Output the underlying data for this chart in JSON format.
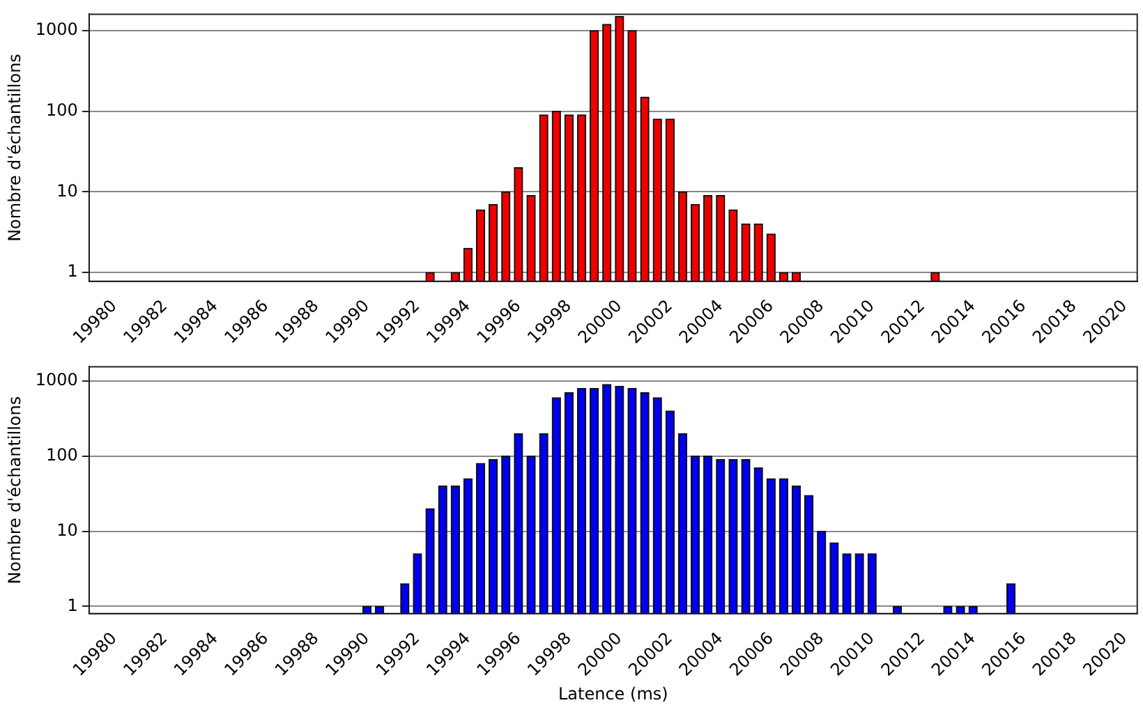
{
  "chart_data": [
    {
      "type": "bar",
      "ylabel": "Nombre d'échantillons",
      "color": "#ee0000",
      "log": "y",
      "grid": "y",
      "x": [
        19992.5,
        19993.5,
        19994,
        19994.5,
        19995,
        19995.5,
        19996,
        19996.5,
        19997,
        19997.5,
        19998,
        19998.5,
        19999,
        19999.5,
        20000,
        20000.5,
        20001,
        20001.5,
        20002,
        20002.5,
        20003,
        20003.5,
        20004,
        20004.5,
        20005,
        20005.5,
        20006,
        20006.5,
        20007,
        20012.5
      ],
      "values": [
        1,
        1,
        2,
        6,
        7,
        10,
        20,
        9,
        90,
        100,
        90,
        90,
        1000,
        1200,
        1500,
        1000,
        150,
        80,
        80,
        10,
        7,
        9,
        9,
        6,
        4,
        4,
        3,
        1,
        1,
        1
      ],
      "xlim": [
        19979,
        20020.5
      ],
      "ylim": [
        0.78,
        1600
      ],
      "xticks": [
        19980,
        19982,
        19984,
        19986,
        19988,
        19990,
        19992,
        19994,
        19996,
        19998,
        20000,
        20002,
        20004,
        20006,
        20008,
        20010,
        20012,
        20014,
        20016,
        20018,
        20020
      ],
      "yticks": [
        1,
        10,
        100,
        1000
      ]
    },
    {
      "type": "bar",
      "ylabel": "Nombre d'échantillons",
      "xlabel": "Latence (ms)",
      "color": "#0000ee",
      "log": "y",
      "grid": "y",
      "x": [
        19990,
        19990.5,
        19991.5,
        19992,
        19992.5,
        19993,
        19993.5,
        19994,
        19994.5,
        19995,
        19995.5,
        19996,
        19996.5,
        19997,
        19997.5,
        19998,
        19998.5,
        19999,
        19999.5,
        20000,
        20000.5,
        20001,
        20001.5,
        20002,
        20002.5,
        20003,
        20003.5,
        20004,
        20004.5,
        20005,
        20005.5,
        20006,
        20006.5,
        20007,
        20007.5,
        20008,
        20008.5,
        20009,
        20009.5,
        20010,
        20011,
        20013,
        20013.5,
        20014,
        20015.5
      ],
      "values": [
        1,
        1,
        2,
        5,
        20,
        40,
        40,
        50,
        80,
        90,
        100,
        200,
        100,
        200,
        600,
        700,
        800,
        800,
        900,
        850,
        800,
        700,
        600,
        400,
        200,
        100,
        100,
        90,
        90,
        90,
        70,
        50,
        50,
        40,
        30,
        10,
        7,
        5,
        5,
        5,
        1,
        1,
        1,
        1,
        2
      ],
      "xlim": [
        19979,
        20020.5
      ],
      "ylim": [
        0.8,
        1550
      ],
      "xticks": [
        19980,
        19982,
        19984,
        19986,
        19988,
        19990,
        19992,
        19994,
        19996,
        19998,
        20000,
        20002,
        20004,
        20006,
        20008,
        20010,
        20012,
        20014,
        20016,
        20018,
        20020
      ],
      "yticks": [
        1,
        10,
        100,
        1000
      ]
    }
  ]
}
